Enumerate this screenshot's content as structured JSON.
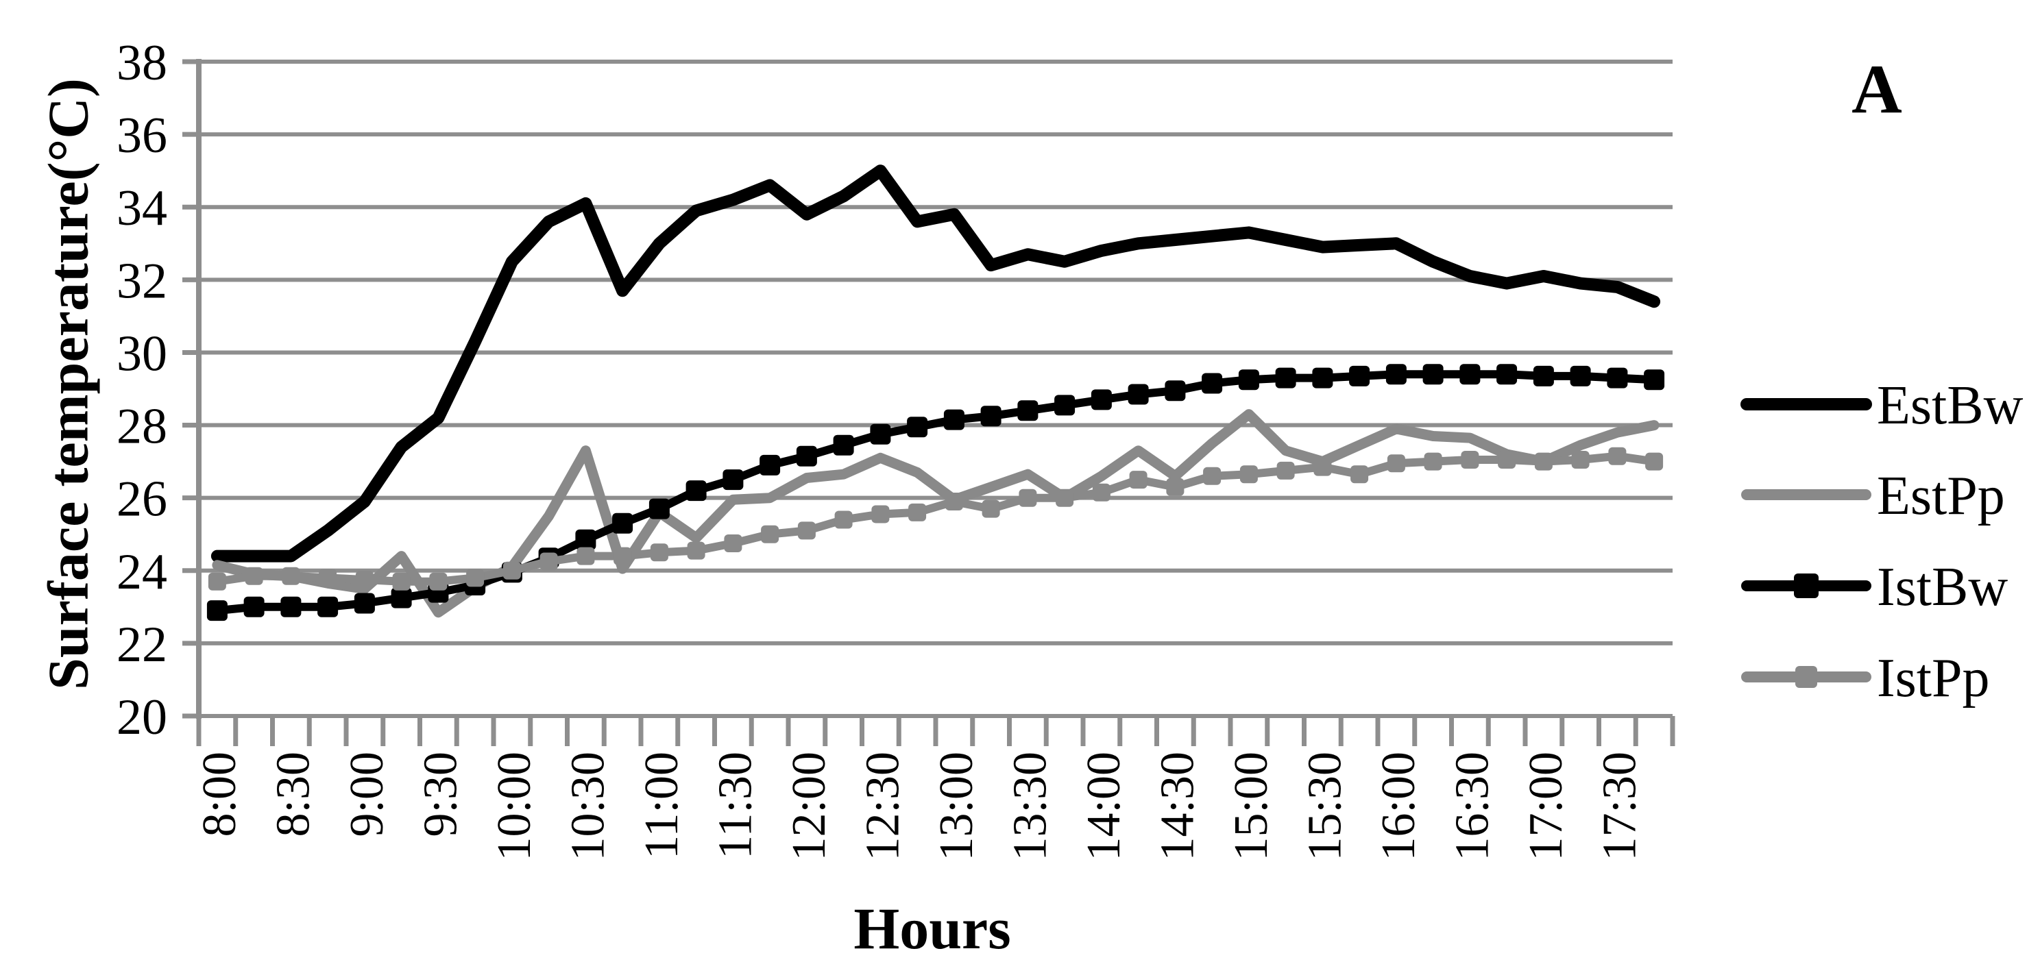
{
  "panel_label": "A",
  "colors": {
    "background": "#ffffff",
    "grid": "#8e8e8e",
    "axis": "#8e8e8e",
    "text": "#000000",
    "series_black": "#000000",
    "series_gray": "#898989"
  },
  "chart_data": {
    "type": "line",
    "title": "",
    "xlabel": "Hours",
    "ylabel": "Surface temperature(°C)",
    "ylim": [
      20,
      38
    ],
    "ytick_step": 2,
    "yticks": [
      20,
      22,
      24,
      26,
      28,
      30,
      32,
      34,
      36,
      38
    ],
    "grid": true,
    "legend_position": "right",
    "x_label_every": 2,
    "x_categories": [
      "8:00",
      "8:15",
      "8:30",
      "8:45",
      "9:00",
      "9:15",
      "9:30",
      "9:45",
      "10:00",
      "10:15",
      "10:30",
      "10:45",
      "11:00",
      "11:15",
      "11:30",
      "11:45",
      "12:00",
      "12:15",
      "12:30",
      "12:45",
      "13:00",
      "13:15",
      "13:30",
      "13:45",
      "14:00",
      "14:15",
      "14:30",
      "14:45",
      "15:00",
      "15:15",
      "15:30",
      "15:45",
      "16:00",
      "16:15",
      "16:30",
      "16:45",
      "17:00",
      "17:15",
      "17:30",
      "17:45"
    ],
    "x_tick_labels": [
      "8:00",
      "8:30",
      "9:00",
      "9:30",
      "10:00",
      "10:30",
      "11:00",
      "11:30",
      "12:00",
      "12:30",
      "13:00",
      "13:30",
      "14:00",
      "14:30",
      "15:00",
      "15:30",
      "16:00",
      "16:30",
      "17:00",
      "17:30"
    ],
    "series": [
      {
        "name": "EstBw",
        "color": "#000000",
        "line_width": 18,
        "marker": "none",
        "marker_size": 0,
        "values": [
          24.4,
          24.4,
          24.4,
          25.1,
          25.9,
          27.4,
          28.2,
          30.3,
          32.5,
          33.6,
          34.1,
          31.7,
          33.0,
          33.9,
          34.2,
          34.6,
          33.8,
          34.3,
          35.0,
          33.6,
          33.8,
          32.4,
          32.7,
          32.5,
          32.8,
          33.0,
          33.1,
          33.2,
          33.3,
          33.1,
          32.9,
          32.95,
          33.0,
          32.5,
          32.1,
          31.9,
          32.1,
          31.9,
          31.8,
          31.4
        ]
      },
      {
        "name": "EstPp",
        "color": "#898989",
        "line_width": 15,
        "marker": "none",
        "marker_size": 0,
        "values": [
          24.15,
          23.9,
          23.85,
          23.65,
          23.5,
          24.4,
          22.85,
          23.55,
          24.1,
          25.5,
          27.3,
          24.05,
          25.6,
          24.9,
          25.95,
          26.0,
          26.55,
          26.65,
          27.1,
          26.7,
          25.95,
          26.3,
          26.65,
          26.0,
          26.6,
          27.3,
          26.6,
          27.5,
          28.3,
          27.3,
          27.0,
          27.45,
          27.9,
          27.7,
          27.65,
          27.2,
          27.0,
          27.45,
          27.8,
          28.0
        ]
      },
      {
        "name": "IstBw",
        "color": "#000000",
        "line_width": 12,
        "marker": "square",
        "marker_size": 30,
        "values": [
          22.9,
          23.0,
          23.0,
          23.0,
          23.1,
          23.25,
          23.4,
          23.6,
          23.95,
          24.35,
          24.85,
          25.3,
          25.7,
          26.2,
          26.5,
          26.9,
          27.15,
          27.45,
          27.75,
          27.95,
          28.15,
          28.25,
          28.4,
          28.55,
          28.7,
          28.85,
          28.95,
          29.15,
          29.25,
          29.3,
          29.3,
          29.35,
          29.4,
          29.4,
          29.4,
          29.4,
          29.35,
          29.35,
          29.3,
          29.25
        ]
      },
      {
        "name": "IstPp",
        "color": "#898989",
        "line_width": 12,
        "marker": "square",
        "marker_size": 26,
        "values": [
          23.7,
          23.85,
          23.85,
          23.8,
          23.75,
          23.7,
          23.7,
          23.8,
          24.0,
          24.25,
          24.4,
          24.4,
          24.5,
          24.55,
          24.75,
          25.0,
          25.1,
          25.4,
          25.55,
          25.6,
          25.9,
          25.7,
          26.0,
          26.0,
          26.15,
          26.5,
          26.3,
          26.6,
          26.65,
          26.75,
          26.85,
          26.65,
          26.95,
          27.0,
          27.05,
          27.05,
          27.0,
          27.05,
          27.15,
          27.0
        ]
      }
    ],
    "layout": {
      "plot_left": 290,
      "plot_right": 2440,
      "plot_top": 90,
      "plot_bottom": 1045,
      "legend_sample_x1": 2548,
      "legend_sample_x2": 2722,
      "legend_text_x": 2738,
      "legend_row_y": [
        590,
        722,
        855,
        988
      ],
      "legend_font_size": 80,
      "ytick_font_size": 74,
      "xtick_font_size": 70
    }
  }
}
